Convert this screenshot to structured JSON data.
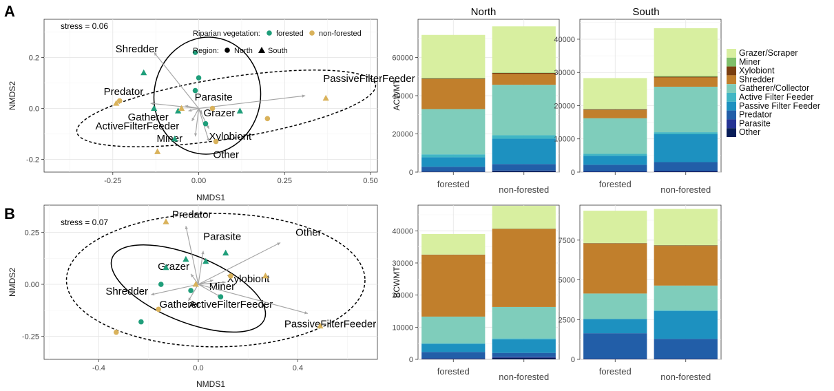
{
  "panel_labels": [
    "A",
    "B"
  ],
  "facet_titles": [
    "North",
    "South"
  ],
  "legend_riparian": {
    "title": "Riparian vegetation:",
    "levels": [
      "forested",
      "non-forested"
    ]
  },
  "legend_region": {
    "title": "Region:",
    "levels": [
      "North",
      "South"
    ]
  },
  "colors": {
    "forested": "#1f9e7a",
    "non_forested": "#d9b25b",
    "arrow": "#a6a6a6"
  },
  "functional_groups": [
    {
      "name": "Grazer/Scraper",
      "color": "#d8efa0"
    },
    {
      "name": "Miner",
      "color": "#7fbf6a"
    },
    {
      "name": "Xylobiont",
      "color": "#7a3f10"
    },
    {
      "name": "Shredder",
      "color": "#c17f2c"
    },
    {
      "name": "Gatherer/Collector",
      "color": "#7fcdbb"
    },
    {
      "name": "Active Filter Feeder",
      "color": "#41b6c4"
    },
    {
      "name": "Passive Filter Feeder",
      "color": "#1d91c0"
    },
    {
      "name": "Predator",
      "color": "#225ea8"
    },
    {
      "name": "Parasite",
      "color": "#253494"
    },
    {
      "name": "Other",
      "color": "#081d58"
    }
  ],
  "chart_data": [
    {
      "type": "scatter",
      "panel": "A",
      "stress": "stress = 0.06",
      "xlabel": "NMDS1",
      "ylabel": "NMDS2",
      "xlim": [
        -0.45,
        0.52
      ],
      "ylim": [
        -0.25,
        0.35
      ],
      "xticks": [
        -0.25,
        0,
        0.25,
        0.5
      ],
      "xtick_labels": [
        "-0.25",
        "0.00",
        "0.25",
        "0.50"
      ],
      "yticks": [
        -0.2,
        0,
        0.2
      ],
      "ytick_labels": [
        "-0.2",
        "0.0",
        "0.2"
      ],
      "points": [
        {
          "x": -0.16,
          "y": 0.14,
          "veg": "forested",
          "region": "South"
        },
        {
          "x": -0.01,
          "y": 0.22,
          "veg": "forested",
          "region": "North"
        },
        {
          "x": -0.01,
          "y": 0.07,
          "veg": "forested",
          "region": "North"
        },
        {
          "x": 0.0,
          "y": 0.12,
          "veg": "forested",
          "region": "North"
        },
        {
          "x": -0.13,
          "y": 0.0,
          "veg": "forested",
          "region": "South"
        },
        {
          "x": -0.06,
          "y": -0.01,
          "veg": "forested",
          "region": "South"
        },
        {
          "x": 0.12,
          "y": -0.01,
          "veg": "forested",
          "region": "South"
        },
        {
          "x": 0.02,
          "y": -0.06,
          "veg": "forested",
          "region": "North"
        },
        {
          "x": -0.07,
          "y": -0.12,
          "veg": "forested",
          "region": "South"
        },
        {
          "x": -0.23,
          "y": 0.03,
          "veg": "non-forested",
          "region": "North"
        },
        {
          "x": -0.24,
          "y": 0.02,
          "veg": "non-forested",
          "region": "South"
        },
        {
          "x": -0.05,
          "y": 0.0,
          "veg": "non-forested",
          "region": "South"
        },
        {
          "x": 0.04,
          "y": 0.0,
          "veg": "non-forested",
          "region": "North"
        },
        {
          "x": 0.2,
          "y": -0.04,
          "veg": "non-forested",
          "region": "North"
        },
        {
          "x": 0.37,
          "y": 0.04,
          "veg": "non-forested",
          "region": "South"
        },
        {
          "x": 0.05,
          "y": -0.13,
          "veg": "non-forested",
          "region": "North"
        },
        {
          "x": -0.12,
          "y": -0.17,
          "veg": "non-forested",
          "region": "South"
        }
      ],
      "vectors": [
        {
          "name": "Shredder",
          "x": -0.13,
          "y": 0.22
        },
        {
          "name": "Predator",
          "x": -0.14,
          "y": 0.02
        },
        {
          "name": "Parasite",
          "x": -0.04,
          "y": 0.01
        },
        {
          "name": "PassiveFilterFeeder",
          "x": 0.31,
          "y": 0.05
        },
        {
          "name": "Gatherer",
          "x": -0.03,
          "y": -0.01
        },
        {
          "name": "Grazer",
          "x": 0.01,
          "y": -0.02
        },
        {
          "name": "ActiveFilterFeeder",
          "x": -0.02,
          "y": -0.05
        },
        {
          "name": "Xylobiont",
          "x": 0.03,
          "y": -0.08
        },
        {
          "name": "Miner",
          "x": -0.01,
          "y": -0.11
        },
        {
          "name": "Other",
          "x": 0.03,
          "y": -0.13
        }
      ]
    },
    {
      "type": "scatter",
      "panel": "B",
      "stress": "stress = 0.07",
      "xlabel": "NMDS1",
      "ylabel": "NMDS2",
      "xlim": [
        -0.62,
        0.72
      ],
      "ylim": [
        -0.36,
        0.38
      ],
      "xticks": [
        -0.4,
        0,
        0.4
      ],
      "xtick_labels": [
        "-0.4",
        "0.0",
        "0.4"
      ],
      "yticks": [
        -0.25,
        0,
        0.25
      ],
      "ytick_labels": [
        "-0.25",
        "0.00",
        "0.25"
      ],
      "points": [
        {
          "x": -0.05,
          "y": 0.12,
          "veg": "forested",
          "region": "South"
        },
        {
          "x": 0.11,
          "y": 0.15,
          "veg": "forested",
          "region": "South"
        },
        {
          "x": 0.03,
          "y": 0.11,
          "veg": "forested",
          "region": "South"
        },
        {
          "x": -0.13,
          "y": 0.08,
          "veg": "forested",
          "region": "South"
        },
        {
          "x": -0.15,
          "y": 0.0,
          "veg": "forested",
          "region": "North"
        },
        {
          "x": -0.03,
          "y": -0.03,
          "veg": "forested",
          "region": "North"
        },
        {
          "x": 0.09,
          "y": -0.06,
          "veg": "forested",
          "region": "North"
        },
        {
          "x": -0.23,
          "y": -0.18,
          "veg": "forested",
          "region": "North"
        },
        {
          "x": -0.13,
          "y": 0.3,
          "veg": "non-forested",
          "region": "South"
        },
        {
          "x": -0.01,
          "y": 0.0,
          "veg": "non-forested",
          "region": "South"
        },
        {
          "x": 0.13,
          "y": 0.04,
          "veg": "non-forested",
          "region": "North"
        },
        {
          "x": -0.16,
          "y": -0.12,
          "veg": "non-forested",
          "region": "North"
        },
        {
          "x": 0.27,
          "y": 0.04,
          "veg": "non-forested",
          "region": "South"
        },
        {
          "x": -0.33,
          "y": -0.23,
          "veg": "non-forested",
          "region": "North"
        },
        {
          "x": 0.49,
          "y": -0.2,
          "veg": "non-forested",
          "region": "South"
        }
      ],
      "vectors": [
        {
          "name": "Predator",
          "x": -0.05,
          "y": 0.28
        },
        {
          "name": "Parasite",
          "x": 0.02,
          "y": 0.16
        },
        {
          "name": "Other",
          "x": 0.33,
          "y": 0.2
        },
        {
          "name": "Grazer",
          "x": -0.03,
          "y": 0.05
        },
        {
          "name": "Xylobiont",
          "x": 0.11,
          "y": 0.01
        },
        {
          "name": "Shredder",
          "x": -0.19,
          "y": -0.05
        },
        {
          "name": "Miner",
          "x": 0.06,
          "y": 0.02
        },
        {
          "name": "Gatherer",
          "x": -0.04,
          "y": -0.08
        },
        {
          "name": "ActiveFilterFeeder",
          "x": 0.09,
          "y": -0.06
        },
        {
          "name": "PassiveFilterFeeder",
          "x": 0.44,
          "y": -0.14
        }
      ]
    },
    {
      "type": "bar",
      "stacked": true,
      "panel": "A",
      "ylabel": "ACWMT",
      "categories": [
        "forested",
        "non-forested"
      ],
      "facets": [
        {
          "name": "North",
          "ylim": [
            0,
            80000
          ],
          "yticks": [
            0,
            20000,
            40000,
            60000
          ],
          "series": [
            {
              "name": "Other",
              "values": [
                200,
                600
              ]
            },
            {
              "name": "Parasite",
              "values": [
                100,
                200
              ]
            },
            {
              "name": "Predator",
              "values": [
                2500,
                3400
              ]
            },
            {
              "name": "Passive Filter Feeder",
              "values": [
                5000,
                13300
              ]
            },
            {
              "name": "Active Filter Feeder",
              "values": [
                1500,
                1800
              ]
            },
            {
              "name": "Gatherer/Collector",
              "values": [
                23700,
                26400
              ]
            },
            {
              "name": "Shredder",
              "values": [
                15700,
                5700
              ]
            },
            {
              "name": "Xylobiont",
              "values": [
                300,
                500
              ]
            },
            {
              "name": "Miner",
              "values": [
                200,
                200
              ]
            },
            {
              "name": "Grazer/Scraper",
              "values": [
                22600,
                24200
              ]
            }
          ]
        },
        {
          "name": "South",
          "ylim": [
            0,
            46000
          ],
          "yticks": [
            0,
            10000,
            20000,
            30000,
            40000
          ],
          "series": [
            {
              "name": "Other",
              "values": [
                100,
                200
              ]
            },
            {
              "name": "Parasite",
              "values": [
                100,
                200
              ]
            },
            {
              "name": "Predator",
              "values": [
                2000,
                2600
              ]
            },
            {
              "name": "Passive Filter Feeder",
              "values": [
                2700,
                8400
              ]
            },
            {
              "name": "Active Filter Feeder",
              "values": [
                600,
                600
              ]
            },
            {
              "name": "Gatherer/Collector",
              "values": [
                10700,
                13700
              ]
            },
            {
              "name": "Shredder",
              "values": [
                2500,
                2800
              ]
            },
            {
              "name": "Xylobiont",
              "values": [
                200,
                200
              ]
            },
            {
              "name": "Miner",
              "values": [
                100,
                200
              ]
            },
            {
              "name": "Grazer/Scraper",
              "values": [
                9300,
                14400
              ]
            }
          ]
        }
      ]
    },
    {
      "type": "bar",
      "stacked": true,
      "panel": "B",
      "ylabel": "BCWMT",
      "categories": [
        "forested",
        "non-forested"
      ],
      "facets": [
        {
          "name": "North",
          "ylim": [
            0,
            48000
          ],
          "yticks": [
            0,
            10000,
            20000,
            30000,
            40000
          ],
          "series": [
            {
              "name": "Other",
              "values": [
                200,
                500
              ]
            },
            {
              "name": "Parasite",
              "values": [
                100,
                200
              ]
            },
            {
              "name": "Predator",
              "values": [
                2000,
                1300
              ]
            },
            {
              "name": "Passive Filter Feeder",
              "values": [
                2500,
                4200
              ]
            },
            {
              "name": "Active Filter Feeder",
              "values": [
                200,
                300
              ]
            },
            {
              "name": "Gatherer/Collector",
              "values": [
                8300,
                9800
              ]
            },
            {
              "name": "Shredder",
              "values": [
                19200,
                24200
              ]
            },
            {
              "name": "Xylobiont",
              "values": [
                100,
                100
              ]
            },
            {
              "name": "Miner",
              "values": [
                0,
                0
              ]
            },
            {
              "name": "Grazer/Scraper",
              "values": [
                6400,
                7200
              ]
            }
          ]
        },
        {
          "name": "South",
          "ylim": [
            0,
            9700
          ],
          "yticks": [
            0,
            2500,
            5000,
            7500
          ],
          "series": [
            {
              "name": "Other",
              "values": [
                20,
                20
              ]
            },
            {
              "name": "Parasite",
              "values": [
                20,
                20
              ]
            },
            {
              "name": "Predator",
              "values": [
                1600,
                1250
              ]
            },
            {
              "name": "Passive Filter Feeder",
              "values": [
                900,
                1750
              ]
            },
            {
              "name": "Active Filter Feeder",
              "values": [
                0,
                50
              ]
            },
            {
              "name": "Gatherer/Collector",
              "values": [
                1600,
                1550
              ]
            },
            {
              "name": "Shredder",
              "values": [
                3150,
                2500
              ]
            },
            {
              "name": "Xylobiont",
              "values": [
                20,
                30
              ]
            },
            {
              "name": "Miner",
              "values": [
                10,
                10
              ]
            },
            {
              "name": "Grazer/Scraper",
              "values": [
                2030,
                2280
              ]
            }
          ]
        }
      ]
    }
  ]
}
